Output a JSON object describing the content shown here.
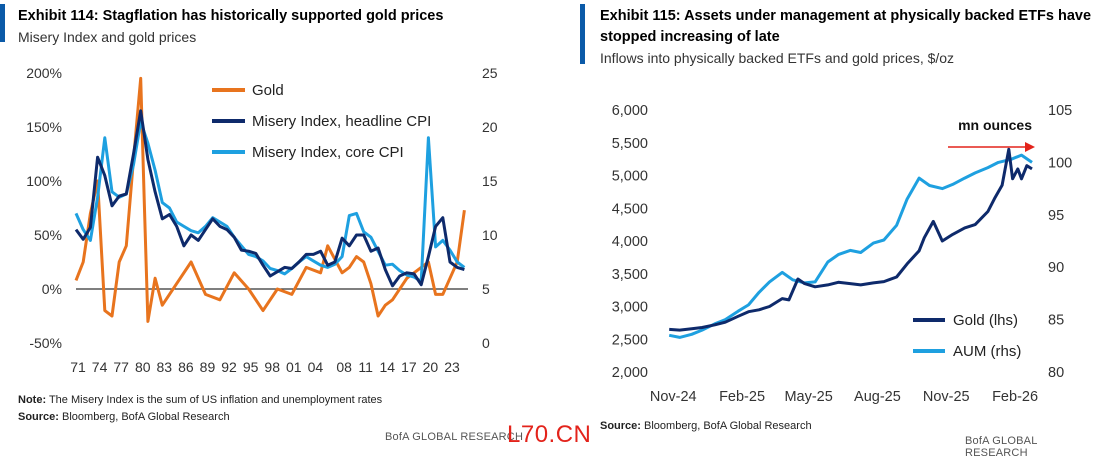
{
  "left": {
    "title": "Exhibit 114: Stagflation has historically supported gold prices",
    "subtitle": "Misery Index and gold prices",
    "note_label": "Note:",
    "note_text": " The Misery Index is the sum of US inflation and unemployment rates",
    "source_label": "Source:",
    "source_text": " Bloomberg, BofA Global Research",
    "credit": "BofA GLOBAL RESEARCH"
  },
  "right": {
    "title_line1": "Exhibit 115: Assets under management at physically backed ETFs have",
    "title_line2": "stopped increasing of late",
    "subtitle": "Inflows into physically backed ETFs and gold prices, $/oz",
    "source_label": "Source:",
    "source_text": " Bloomberg, BofA Global Research",
    "credit": "BofA GLOBAL RESEARCH"
  },
  "watermark": "L70.CN",
  "chart_data": [
    {
      "type": "line",
      "x_tick_labels": [
        "71",
        "74",
        "77",
        "80",
        "83",
        "86",
        "89",
        "92",
        "95",
        "98",
        "01",
        "04",
        "08",
        "11",
        "14",
        "17",
        "20",
        "23"
      ],
      "y_left_ticks": [
        "200%",
        "150%",
        "100%",
        "50%",
        "0%",
        "-50%"
      ],
      "y_left_lim": [
        -50,
        200
      ],
      "y_right_ticks": [
        "25",
        "20",
        "15",
        "10",
        "5",
        "0"
      ],
      "y_right_lim": [
        0,
        25
      ],
      "legend_position": "top-center",
      "zero_line": true,
      "series": [
        {
          "name": "Gold",
          "axis": "left",
          "color": "#e8741e",
          "x": [
            1971,
            1972,
            1973,
            1974,
            1975,
            1976,
            1977,
            1978,
            1979,
            1980,
            1980.5,
            1981,
            1982,
            1983,
            1985,
            1987,
            1989,
            1991,
            1993,
            1995,
            1997,
            1999,
            2001,
            2003,
            2005,
            2006,
            2008,
            2009,
            2010,
            2011,
            2012,
            2013,
            2014,
            2015,
            2017,
            2019,
            2020,
            2021,
            2022,
            2023,
            2024,
            2025
          ],
          "y": [
            8,
            25,
            70,
            100,
            -20,
            -25,
            25,
            40,
            120,
            195,
            80,
            -30,
            10,
            -15,
            5,
            25,
            -5,
            -10,
            15,
            0,
            -20,
            0,
            -5,
            20,
            15,
            40,
            15,
            20,
            30,
            25,
            5,
            -25,
            -15,
            -10,
            10,
            20,
            25,
            -5,
            -5,
            10,
            25,
            73
          ]
        },
        {
          "name": "Misery Index, headline CPI",
          "axis": "right",
          "color": "#0e2a6b",
          "x": [
            1971,
            1972,
            1973,
            1974,
            1975,
            1976,
            1977,
            1978,
            1979,
            1980,
            1981,
            1982,
            1983,
            1984,
            1985,
            1986,
            1987,
            1988,
            1989,
            1990,
            1991,
            1992,
            1993,
            1994,
            1995,
            1996,
            1997,
            1998,
            1999,
            2000,
            2001,
            2002,
            2003,
            2004,
            2005,
            2006,
            2007,
            2008,
            2009,
            2010,
            2011,
            2012,
            2013,
            2014,
            2015,
            2016,
            2017,
            2018,
            2019,
            2020,
            2021,
            2022,
            2023,
            2024,
            2025
          ],
          "y": [
            10.5,
            9.6,
            10.7,
            17.2,
            15.5,
            12.7,
            13.6,
            13.8,
            17.5,
            21.5,
            17,
            14,
            11.5,
            11.9,
            10.8,
            9,
            10,
            9.5,
            10.5,
            11.5,
            10.8,
            10.5,
            9.8,
            8.6,
            8.5,
            8.3,
            7.2,
            6.2,
            6.6,
            7,
            6.9,
            7.5,
            8.2,
            8.2,
            8.5,
            7.2,
            7.5,
            9.7,
            9,
            10,
            10,
            8.5,
            8.8,
            6.8,
            5.3,
            6.2,
            6.5,
            6.4,
            5.4,
            8,
            10.8,
            11.6,
            7.5,
            7,
            6.8
          ]
        },
        {
          "name": "Misery Index, core CPI",
          "axis": "right",
          "color": "#1ea0e0",
          "x": [
            1971,
            1972,
            1973,
            1974,
            1975,
            1976,
            1977,
            1978,
            1979,
            1980,
            1981,
            1982,
            1983,
            1984,
            1985,
            1986,
            1987,
            1988,
            1989,
            1990,
            1991,
            1992,
            1993,
            1994,
            1995,
            1996,
            1997,
            1998,
            1999,
            2000,
            2001,
            2002,
            2003,
            2004,
            2005,
            2006,
            2007,
            2008,
            2009,
            2010,
            2011,
            2012,
            2013,
            2014,
            2015,
            2016,
            2017,
            2018,
            2019,
            2020,
            2021,
            2022,
            2023,
            2024,
            2025
          ],
          "y": [
            12,
            10.5,
            9.5,
            13.5,
            19,
            14,
            13.5,
            13.8,
            16.5,
            20.5,
            18.5,
            16,
            13,
            12.5,
            11.2,
            10.8,
            10.4,
            10.2,
            10.8,
            11.6,
            11.2,
            10.8,
            9.8,
            9,
            8.2,
            8,
            7.6,
            6.9,
            6.7,
            6.4,
            6.9,
            7.5,
            8,
            7.6,
            7.2,
            7,
            7.3,
            8,
            11.8,
            12,
            10.3,
            9.8,
            8.5,
            7.2,
            7.3,
            6.7,
            6.3,
            6.1,
            5.7,
            19,
            8.9,
            9.5,
            8.6,
            7.5,
            7
          ]
        }
      ]
    },
    {
      "type": "line",
      "x_tick_labels": [
        "Nov-24",
        "Feb-25",
        "May-25",
        "Aug-25",
        "Nov-25",
        "Feb-26"
      ],
      "y_left_ticks": [
        "6,000",
        "5,500",
        "5,000",
        "4,500",
        "4,000",
        "3,500",
        "3,000",
        "2,500",
        "2,000"
      ],
      "y_left_lim": [
        2000,
        6000
      ],
      "y_right_ticks": [
        "105",
        "100",
        "95",
        "90",
        "85",
        "80"
      ],
      "y_right_lim": [
        80,
        105
      ],
      "annotation": "mn ounces",
      "legend_position": "bottom-right",
      "series": [
        {
          "name": "Gold (lhs)",
          "axis": "left",
          "color": "#0e2a6b",
          "x": [
            "2024-11-01",
            "2024-11-15",
            "2024-12-01",
            "2024-12-15",
            "2025-01-01",
            "2025-01-15",
            "2025-02-01",
            "2025-02-15",
            "2025-03-01",
            "2025-03-15",
            "2025-04-01",
            "2025-04-10",
            "2025-04-22",
            "2025-05-01",
            "2025-05-15",
            "2025-06-01",
            "2025-06-15",
            "2025-07-01",
            "2025-07-15",
            "2025-08-01",
            "2025-08-15",
            "2025-09-01",
            "2025-09-15",
            "2025-10-01",
            "2025-10-08",
            "2025-10-20",
            "2025-11-01",
            "2025-11-15",
            "2025-12-01",
            "2025-12-15",
            "2026-01-01",
            "2026-01-10",
            "2026-01-20",
            "2026-01-29",
            "2026-02-03",
            "2026-02-10",
            "2026-02-15",
            "2026-02-22",
            "2026-03-01"
          ],
          "y": [
            2650,
            2640,
            2660,
            2680,
            2720,
            2760,
            2850,
            2920,
            2950,
            3000,
            3120,
            3100,
            3420,
            3350,
            3300,
            3330,
            3370,
            3350,
            3330,
            3360,
            3380,
            3450,
            3650,
            3850,
            4050,
            4300,
            4000,
            4100,
            4200,
            4250,
            4450,
            4650,
            4850,
            5400,
            4950,
            5100,
            4950,
            5150,
            5100
          ]
        },
        {
          "name": "AUM (rhs)",
          "axis": "right",
          "color": "#1ea0e0",
          "x": [
            "2024-11-01",
            "2024-11-15",
            "2024-12-01",
            "2024-12-15",
            "2025-01-01",
            "2025-01-15",
            "2025-02-01",
            "2025-02-15",
            "2025-03-01",
            "2025-03-15",
            "2025-04-01",
            "2025-04-15",
            "2025-05-01",
            "2025-05-15",
            "2025-06-01",
            "2025-06-15",
            "2025-07-01",
            "2025-07-15",
            "2025-08-01",
            "2025-08-15",
            "2025-09-01",
            "2025-09-15",
            "2025-10-01",
            "2025-10-15",
            "2025-11-01",
            "2025-11-15",
            "2025-12-01",
            "2025-12-15",
            "2026-01-01",
            "2026-01-15",
            "2026-02-01",
            "2026-02-15",
            "2026-03-01"
          ],
          "y": [
            83.5,
            83.3,
            83.6,
            84,
            84.6,
            85,
            85.8,
            86.4,
            87.6,
            88.6,
            89.5,
            88.8,
            88.5,
            88.6,
            90.5,
            91.2,
            91.6,
            91.4,
            92.3,
            92.6,
            94,
            96.5,
            98.5,
            97.8,
            97.5,
            97.9,
            98.5,
            99,
            99.5,
            100,
            100.3,
            100.7,
            100
          ]
        }
      ]
    }
  ]
}
